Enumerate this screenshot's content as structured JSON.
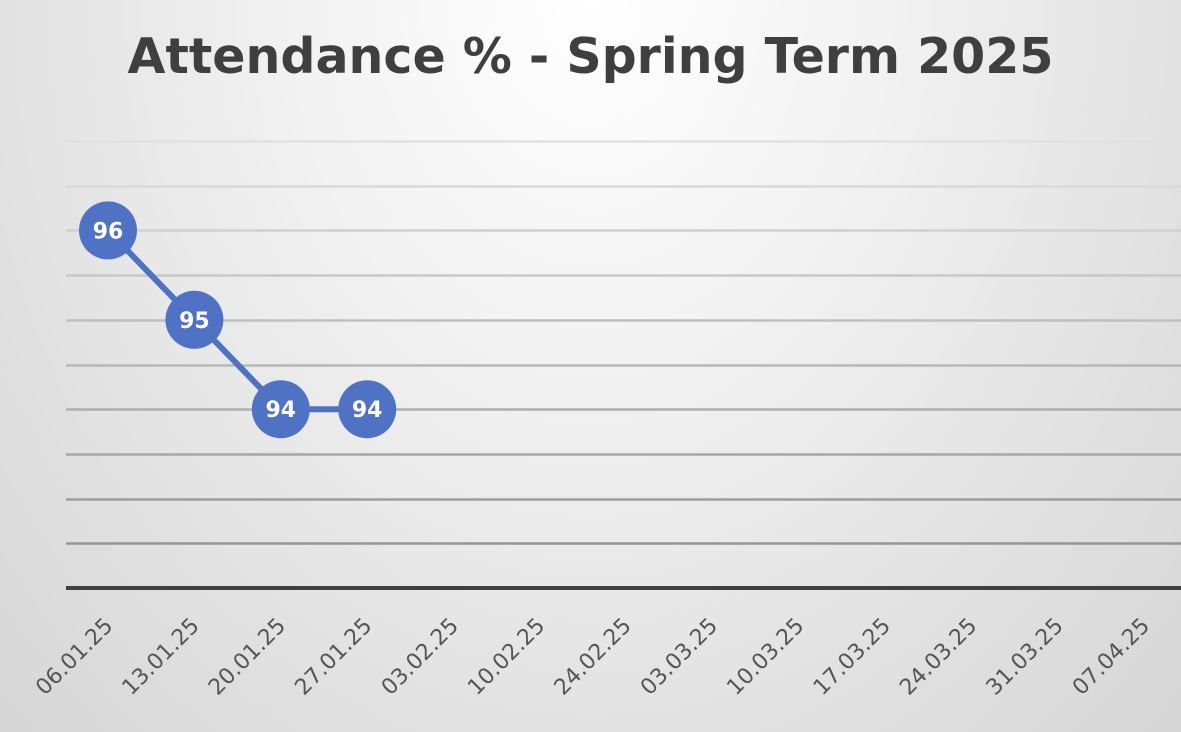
{
  "chart_data": {
    "type": "line",
    "title": "Attendance % - Spring Term 2025",
    "xlabel": "",
    "ylabel": "",
    "categories": [
      "06.01.25",
      "13.01.25",
      "20.01.25",
      "27.01.25",
      "03.02.25",
      "10.02.25",
      "24.02.25",
      "03.03.25",
      "10.03.25",
      "17.03.25",
      "24.03.25",
      "31.03.25",
      "07.04.25"
    ],
    "series": [
      {
        "values": [
          96,
          95,
          94,
          94,
          null,
          null,
          null,
          null,
          null,
          null,
          null,
          null,
          null
        ],
        "color": "#4f72c4"
      }
    ],
    "ylim": [
      92,
      97
    ],
    "y_gridlines": [
      92.5,
      93,
      93.5,
      94,
      94.5,
      95,
      95.5,
      96,
      96.5
    ],
    "grid": true,
    "data_labels": true,
    "legend": "none"
  }
}
